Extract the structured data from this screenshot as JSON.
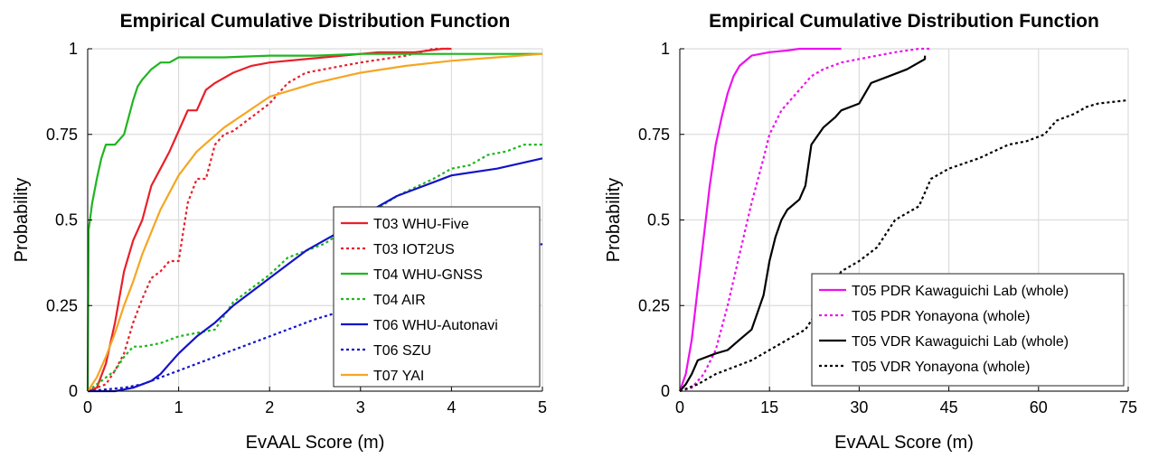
{
  "chart_data": [
    {
      "type": "line",
      "title": "Empirical Cumulative Distribution Function",
      "xlabel": "EvAAL Score (m)",
      "ylabel": "Probability",
      "xlim": [
        0,
        5
      ],
      "ylim": [
        0,
        1
      ],
      "xticks": [
        "0",
        "1",
        "2",
        "3",
        "4",
        "5"
      ],
      "yticks": [
        "0",
        "0.25",
        "0.5",
        "0.75",
        "1"
      ],
      "grid": true,
      "legend_position": "bottom-right",
      "series": [
        {
          "name": "T03 WHU-Five",
          "color": "#e8202a",
          "dash": "solid",
          "x": [
            0,
            0.1,
            0.2,
            0.3,
            0.4,
            0.5,
            0.6,
            0.7,
            0.8,
            0.9,
            1.0,
            1.1,
            1.2,
            1.3,
            1.4,
            1.6,
            1.8,
            2.0,
            2.4,
            2.8,
            3.2,
            3.6,
            3.9,
            4.0
          ],
          "y": [
            0,
            0.01,
            0.08,
            0.2,
            0.35,
            0.44,
            0.5,
            0.6,
            0.65,
            0.7,
            0.76,
            0.82,
            0.82,
            0.88,
            0.9,
            0.93,
            0.95,
            0.96,
            0.97,
            0.98,
            0.99,
            0.99,
            1.0,
            1.0
          ]
        },
        {
          "name": "T03 IOT2US",
          "color": "#e8202a",
          "dash": "dotted",
          "x": [
            0,
            0.2,
            0.3,
            0.4,
            0.5,
            0.6,
            0.7,
            0.8,
            0.9,
            1.0,
            1.1,
            1.2,
            1.3,
            1.4,
            1.5,
            1.6,
            1.8,
            2.0,
            2.2,
            2.4,
            2.8,
            3.0,
            3.5,
            3.8,
            4.0
          ],
          "y": [
            0,
            0.02,
            0.06,
            0.11,
            0.2,
            0.27,
            0.33,
            0.35,
            0.38,
            0.38,
            0.55,
            0.62,
            0.62,
            0.72,
            0.75,
            0.76,
            0.8,
            0.84,
            0.9,
            0.93,
            0.95,
            0.96,
            0.98,
            1.0,
            1.0
          ]
        },
        {
          "name": "T04 WHU-GNSS",
          "color": "#1fb61f",
          "dash": "solid",
          "x": [
            0,
            0.01,
            0.05,
            0.1,
            0.15,
            0.2,
            0.3,
            0.4,
            0.45,
            0.5,
            0.55,
            0.6,
            0.7,
            0.8,
            0.9,
            1.0,
            1.2,
            1.5,
            2.0,
            2.5,
            3.0,
            4.0,
            5.0
          ],
          "y": [
            0,
            0.47,
            0.55,
            0.62,
            0.68,
            0.72,
            0.72,
            0.75,
            0.8,
            0.85,
            0.89,
            0.91,
            0.94,
            0.96,
            0.96,
            0.975,
            0.975,
            0.975,
            0.98,
            0.98,
            0.985,
            0.985,
            0.985
          ]
        },
        {
          "name": "T04 AIR",
          "color": "#1fb61f",
          "dash": "dotted",
          "x": [
            0,
            0.3,
            0.4,
            0.5,
            0.6,
            0.8,
            1.0,
            1.2,
            1.4,
            1.5,
            1.6,
            1.8,
            2.0,
            2.2,
            2.6,
            3.0,
            3.4,
            3.8,
            4.0,
            4.2,
            4.4,
            4.6,
            4.8,
            5.0
          ],
          "y": [
            0,
            0.06,
            0.1,
            0.13,
            0.13,
            0.14,
            0.16,
            0.17,
            0.18,
            0.22,
            0.26,
            0.3,
            0.34,
            0.39,
            0.43,
            0.5,
            0.57,
            0.62,
            0.65,
            0.66,
            0.69,
            0.7,
            0.72,
            0.72
          ]
        },
        {
          "name": "T06 WHU-Autonavi",
          "color": "#1313c8",
          "dash": "solid",
          "x": [
            0,
            0.3,
            0.5,
            0.7,
            0.8,
            0.9,
            1.0,
            1.2,
            1.4,
            1.6,
            1.8,
            2.0,
            2.2,
            2.4,
            2.6,
            2.8,
            3.0,
            3.2,
            3.4,
            3.6,
            3.8,
            4.0,
            4.5,
            5.0
          ],
          "y": [
            0,
            0.0,
            0.01,
            0.03,
            0.05,
            0.08,
            0.11,
            0.16,
            0.2,
            0.25,
            0.29,
            0.33,
            0.37,
            0.41,
            0.44,
            0.47,
            0.51,
            0.54,
            0.57,
            0.59,
            0.61,
            0.63,
            0.65,
            0.68
          ]
        },
        {
          "name": "T06 SZU",
          "color": "#1313c8",
          "dash": "dotted",
          "x": [
            0,
            0.4,
            0.6,
            0.8,
            1.0,
            1.2,
            1.5,
            2.0,
            2.5,
            3.0,
            3.5,
            4.0,
            4.5,
            5.0
          ],
          "y": [
            0,
            0.01,
            0.02,
            0.04,
            0.06,
            0.08,
            0.11,
            0.16,
            0.21,
            0.25,
            0.29,
            0.33,
            0.38,
            0.43
          ]
        },
        {
          "name": "T07 YAI",
          "color": "#f5a623",
          "dash": "solid",
          "x": [
            0,
            0.1,
            0.2,
            0.3,
            0.4,
            0.5,
            0.6,
            0.8,
            1.0,
            1.2,
            1.5,
            2.0,
            2.5,
            3.0,
            3.5,
            4.0,
            4.5,
            5.0
          ],
          "y": [
            0,
            0.04,
            0.1,
            0.17,
            0.25,
            0.32,
            0.4,
            0.53,
            0.63,
            0.7,
            0.77,
            0.86,
            0.9,
            0.93,
            0.95,
            0.965,
            0.975,
            0.985
          ]
        }
      ]
    },
    {
      "type": "line",
      "title": "Empirical Cumulative Distribution Function",
      "xlabel": "EvAAL Score (m)",
      "ylabel": "Probability",
      "xlim": [
        0,
        75
      ],
      "ylim": [
        0,
        1
      ],
      "xticks": [
        "0",
        "15",
        "30",
        "45",
        "60",
        "75"
      ],
      "yticks": [
        "0",
        "0.25",
        "0.5",
        "0.75",
        "1"
      ],
      "grid": true,
      "legend_position": "bottom-right",
      "series": [
        {
          "name": "T05 PDR Kawaguichi Lab (whole)",
          "color": "#ee10ee",
          "dash": "solid",
          "x": [
            0,
            1,
            2,
            3,
            4,
            5,
            6,
            7,
            8,
            9,
            10,
            12,
            15,
            18,
            20,
            24,
            27
          ],
          "y": [
            0,
            0.05,
            0.15,
            0.3,
            0.45,
            0.6,
            0.72,
            0.8,
            0.87,
            0.92,
            0.95,
            0.98,
            0.99,
            0.995,
            1.0,
            1.0,
            1.0
          ]
        },
        {
          "name": "T05 PDR Yonayona (whole)",
          "color": "#ee10ee",
          "dash": "dotted",
          "x": [
            0,
            2,
            4,
            6,
            8,
            10,
            12,
            14,
            15,
            17,
            20,
            22,
            24,
            27,
            30,
            33,
            36,
            38,
            40,
            42
          ],
          "y": [
            0,
            0.01,
            0.05,
            0.12,
            0.25,
            0.4,
            0.55,
            0.68,
            0.75,
            0.82,
            0.88,
            0.92,
            0.94,
            0.96,
            0.97,
            0.98,
            0.99,
            0.995,
            1.0,
            1.0
          ]
        },
        {
          "name": "T05 VDR Kawaguichi Lab (whole)",
          "color": "#000000",
          "dash": "solid",
          "x": [
            0,
            1,
            2,
            3,
            6,
            8,
            10,
            12,
            14,
            15,
            16,
            17,
            18,
            20,
            21,
            22,
            24,
            26,
            27,
            30,
            32,
            35,
            38,
            41,
            41
          ],
          "y": [
            0,
            0.02,
            0.05,
            0.09,
            0.11,
            0.12,
            0.15,
            0.18,
            0.28,
            0.38,
            0.45,
            0.5,
            0.53,
            0.56,
            0.6,
            0.72,
            0.77,
            0.8,
            0.82,
            0.84,
            0.9,
            0.92,
            0.94,
            0.97,
            0.98
          ]
        },
        {
          "name": "T05 VDR Yonayona (whole)",
          "color": "#000000",
          "dash": "dotted",
          "x": [
            0,
            3,
            6,
            9,
            12,
            15,
            18,
            21,
            24,
            27,
            30,
            33,
            36,
            40,
            42,
            45,
            50,
            55,
            58,
            61,
            63,
            66,
            68,
            70,
            75
          ],
          "y": [
            0,
            0.02,
            0.05,
            0.07,
            0.09,
            0.12,
            0.15,
            0.18,
            0.26,
            0.35,
            0.38,
            0.42,
            0.5,
            0.54,
            0.62,
            0.65,
            0.68,
            0.72,
            0.73,
            0.75,
            0.79,
            0.81,
            0.83,
            0.84,
            0.85
          ]
        }
      ]
    }
  ]
}
